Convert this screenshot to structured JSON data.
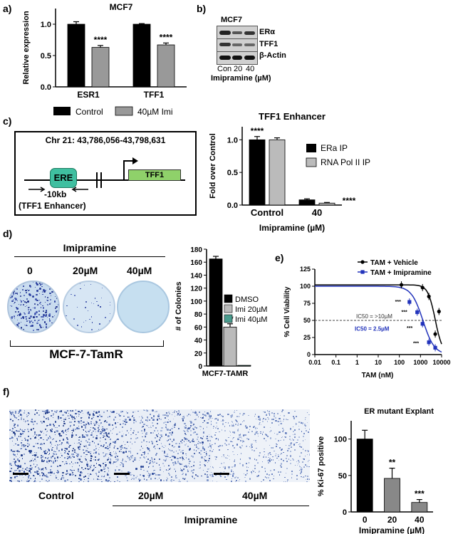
{
  "panels": {
    "a": {
      "letter": "a)",
      "chart_data": {
        "type": "bar",
        "title": "MCF7",
        "ylabel": "Relative expression",
        "xlabel": "",
        "ylim": [
          0,
          1.25
        ],
        "yticks": [
          "0.0",
          "0.5",
          "1.0"
        ],
        "categories": [
          "ESR1",
          "TFF1"
        ],
        "series": [
          {
            "name": "Control",
            "values": [
              1.0,
              1.0
            ],
            "err": [
              0.04,
              0.01
            ],
            "color": "#000000"
          },
          {
            "name": "40µM Imi",
            "values": [
              0.63,
              0.67
            ],
            "err": [
              0.03,
              0.03
            ],
            "color": "#999999"
          }
        ],
        "annotations": [
          "****",
          "****"
        ],
        "legend": "bottom"
      }
    },
    "b": {
      "letter": "b)",
      "cell_line": "MCF7",
      "bands": [
        "ERα",
        "TFF1",
        "β-Actin"
      ],
      "lanes": [
        "Con",
        "20",
        "40"
      ],
      "xlabel": "Imipramine (µM)"
    },
    "c_diagram": {
      "letter": "c)",
      "coords": "Chr 21: 43,786,056-43,798,631",
      "ere": "ERE",
      "gene": "TFF1",
      "distance": "-10kb",
      "enhancer": "(TFF1 Enhancer)",
      "colors": {
        "ere": "#3fbfa0",
        "gene": "#8fd16a"
      }
    },
    "c_chart": {
      "chart_data": {
        "type": "bar",
        "title": "TFF1 Enhancer",
        "ylabel": "Fold over Control",
        "xlabel": "Imipramine (µM)",
        "ylim": [
          0,
          1.2
        ],
        "yticks": [
          "0.0",
          "0.5",
          "1.0"
        ],
        "categories": [
          "Control",
          "40"
        ],
        "series": [
          {
            "name": "ERa IP",
            "values": [
              1.0,
              0.08
            ],
            "err": [
              0.05,
              0.015
            ],
            "color": "#000000"
          },
          {
            "name": "RNA Pol II IP",
            "values": [
              1.0,
              0.03
            ],
            "err": [
              0.03,
              0.01
            ],
            "color": "#bbbbbb"
          }
        ],
        "annotations": [
          "****",
          "****"
        ],
        "legend": "right"
      }
    },
    "d_images": {
      "letter": "d)",
      "treatment": "Imipramine",
      "doses": [
        "0",
        "20µM",
        "40µM"
      ],
      "cell_line": "MCF-7-TamR"
    },
    "d_chart": {
      "chart_data": {
        "type": "bar",
        "title": "",
        "ylabel": "# of Colonies",
        "xlabel": "MCF7-TAMR",
        "ylim": [
          0,
          180
        ],
        "yticks": [
          "0",
          "20",
          "40",
          "60",
          "80",
          "100",
          "120",
          "140",
          "160",
          "180"
        ],
        "categories": [
          "MCF7-TAMR"
        ],
        "series": [
          {
            "name": "DMSO",
            "values": [
              165
            ],
            "err": [
              4
            ],
            "color": "#000000"
          },
          {
            "name": "Imi 20µM",
            "values": [
              60
            ],
            "err": [
              5
            ],
            "color": "#bbbbbb"
          },
          {
            "name": "Imi 40µM",
            "values": [
              1
            ],
            "err": [
              0
            ],
            "color": "#4a9d8f"
          }
        ],
        "annotations": [
          "**"
        ],
        "legend": "right"
      }
    },
    "e": {
      "letter": "e)",
      "chart_data": {
        "type": "line",
        "ylabel": "% Cell Viability",
        "xlabel": "TAM (nM)",
        "log_x": true,
        "xlim": [
          0.01,
          10000
        ],
        "ylim": [
          0,
          125
        ],
        "xticks": [
          "0.01",
          "0.1",
          "1",
          "10",
          "100",
          "1000",
          "10000"
        ],
        "yticks": [
          "0",
          "25",
          "50",
          "75",
          "100",
          "125"
        ],
        "series": [
          {
            "name": "TAM + Vehicle",
            "color": "#000000",
            "points": [
              [
                125,
                102
              ],
              [
                1250,
                98
              ],
              [
                2500,
                85
              ],
              [
                5000,
                30
              ],
              [
                7500,
                63
              ]
            ]
          },
          {
            "name": "TAM + Imipramine",
            "color": "#2233bb",
            "points": [
              [
                300,
                77
              ],
              [
                700,
                62
              ],
              [
                1250,
                45
              ],
              [
                2500,
                18
              ],
              [
                5000,
                10
              ]
            ]
          }
        ],
        "annotations": [
          "***",
          "***",
          "***",
          "***",
          "IC50 = >10µM",
          "IC50 = 2.5µM"
        ],
        "legend": "top-right"
      }
    },
    "f": {
      "letter": "f)",
      "labels": [
        "Control",
        "20µM",
        "40µM"
      ],
      "treatment": "Imipramine",
      "chart_data": {
        "type": "bar",
        "title": "ER mutant Explant",
        "ylabel": "% Ki-67 positive",
        "xlabel": "Imipramine (µM)",
        "ylim": [
          0,
          125
        ],
        "yticks": [
          "0",
          "50",
          "100"
        ],
        "categories": [
          "0",
          "20",
          "40"
        ],
        "series": [
          {
            "name": "",
            "values": [
              100,
              46,
              13
            ],
            "err": [
              12,
              14,
              4
            ],
            "colors": [
              "#000000",
              "#888888",
              "#888888"
            ]
          }
        ],
        "annotations": [
          "",
          "**",
          "***"
        ]
      }
    }
  }
}
